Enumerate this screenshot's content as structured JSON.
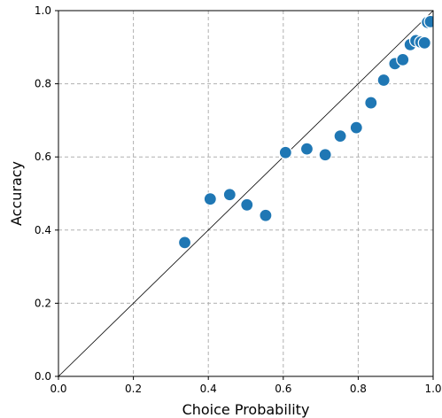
{
  "chart_data": {
    "type": "scatter",
    "title": "",
    "xlabel": "Choice Probability",
    "ylabel": "Accuracy",
    "xlim": [
      0.0,
      1.0
    ],
    "ylim": [
      0.0,
      1.0
    ],
    "xticks": [
      "0.0",
      "0.2",
      "0.4",
      "0.6",
      "0.8",
      "1.0"
    ],
    "yticks": [
      "0.0",
      "0.2",
      "0.4",
      "0.6",
      "0.8",
      "1.0"
    ],
    "grid": true,
    "reference_line": "y = x",
    "colors": {
      "points": "#1f77b4",
      "point_edge": "#ffffff",
      "grid": "#b0b0b0",
      "reference_line": "#000000"
    },
    "points": [
      {
        "x": 0.337,
        "y": 0.366
      },
      {
        "x": 0.405,
        "y": 0.485
      },
      {
        "x": 0.457,
        "y": 0.497
      },
      {
        "x": 0.503,
        "y": 0.469
      },
      {
        "x": 0.553,
        "y": 0.44
      },
      {
        "x": 0.606,
        "y": 0.612
      },
      {
        "x": 0.663,
        "y": 0.622
      },
      {
        "x": 0.712,
        "y": 0.606
      },
      {
        "x": 0.752,
        "y": 0.657
      },
      {
        "x": 0.795,
        "y": 0.68
      },
      {
        "x": 0.834,
        "y": 0.748
      },
      {
        "x": 0.868,
        "y": 0.81
      },
      {
        "x": 0.898,
        "y": 0.855
      },
      {
        "x": 0.919,
        "y": 0.866
      },
      {
        "x": 0.939,
        "y": 0.907
      },
      {
        "x": 0.954,
        "y": 0.918
      },
      {
        "x": 0.967,
        "y": 0.914
      },
      {
        "x": 0.977,
        "y": 0.912
      },
      {
        "x": 0.985,
        "y": 0.968
      },
      {
        "x": 0.993,
        "y": 0.97
      }
    ]
  }
}
